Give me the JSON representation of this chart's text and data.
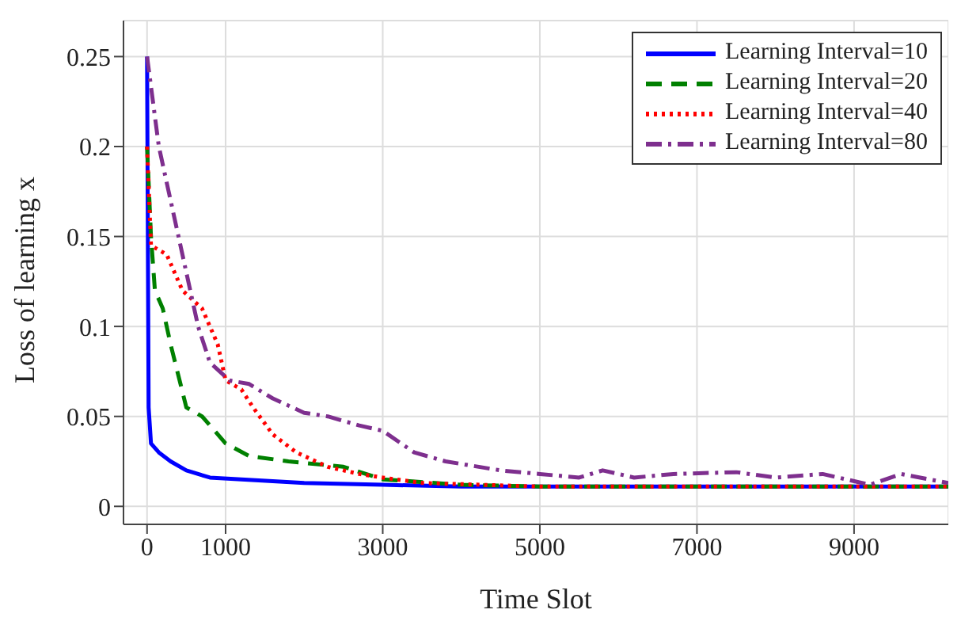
{
  "chart_data": {
    "type": "line",
    "xlabel": "Time Slot",
    "ylabel": "Loss of learning x",
    "xlim": [
      -300,
      10200
    ],
    "ylim": [
      -0.01,
      0.27
    ],
    "xticks": [
      0,
      1000,
      3000,
      5000,
      7000,
      9000
    ],
    "yticks": [
      0,
      0.05,
      0.1,
      0.15,
      0.2,
      0.25
    ],
    "grid": true,
    "legend": "top right",
    "marker": "none",
    "series": [
      {
        "name": "Learning Interval=10",
        "color": "#0000ff",
        "line_style": "solid",
        "x": [
          0,
          20,
          50,
          150,
          300,
          500,
          800,
          1200,
          2000,
          3000,
          4000,
          5000,
          6000,
          7000,
          8000,
          9000,
          10200
        ],
        "values": [
          0.25,
          0.055,
          0.035,
          0.03,
          0.025,
          0.02,
          0.016,
          0.015,
          0.013,
          0.012,
          0.011,
          0.011,
          0.011,
          0.011,
          0.011,
          0.011,
          0.011
        ]
      },
      {
        "name": "Learning Interval=20",
        "color": "#008000",
        "line_style": "dashed",
        "x": [
          0,
          50,
          100,
          200,
          300,
          500,
          700,
          1000,
          1300,
          1800,
          2500,
          3000,
          4000,
          5000,
          6000,
          7000,
          8000,
          9000,
          10200
        ],
        "values": [
          0.2,
          0.15,
          0.12,
          0.11,
          0.09,
          0.055,
          0.05,
          0.035,
          0.028,
          0.025,
          0.022,
          0.015,
          0.012,
          0.011,
          0.011,
          0.011,
          0.011,
          0.011,
          0.011
        ]
      },
      {
        "name": "Learning Interval=40",
        "color": "#ff0000",
        "line_style": "dotted",
        "x": [
          0,
          50,
          250,
          450,
          700,
          900,
          1000,
          1200,
          1350,
          1600,
          1900,
          2300,
          2700,
          3000,
          3500,
          5000,
          6000,
          7000,
          8000,
          9000,
          10200
        ],
        "values": [
          0.2,
          0.145,
          0.14,
          0.12,
          0.11,
          0.09,
          0.07,
          0.065,
          0.055,
          0.04,
          0.03,
          0.022,
          0.018,
          0.016,
          0.013,
          0.011,
          0.011,
          0.011,
          0.011,
          0.011,
          0.011
        ]
      },
      {
        "name": "Learning Interval=80",
        "color": "#7e2f8e",
        "line_style": "dashdot",
        "x": [
          0,
          150,
          400,
          650,
          800,
          1050,
          1300,
          1600,
          2000,
          2300,
          2700,
          3000,
          3400,
          3800,
          4500,
          5000,
          5500,
          5800,
          6200,
          6700,
          7500,
          8000,
          8600,
          9200,
          9600,
          10200
        ],
        "values": [
          0.25,
          0.2,
          0.15,
          0.1,
          0.08,
          0.07,
          0.068,
          0.06,
          0.052,
          0.05,
          0.045,
          0.042,
          0.03,
          0.025,
          0.02,
          0.018,
          0.016,
          0.02,
          0.016,
          0.018,
          0.019,
          0.016,
          0.018,
          0.012,
          0.018,
          0.013
        ]
      }
    ]
  }
}
